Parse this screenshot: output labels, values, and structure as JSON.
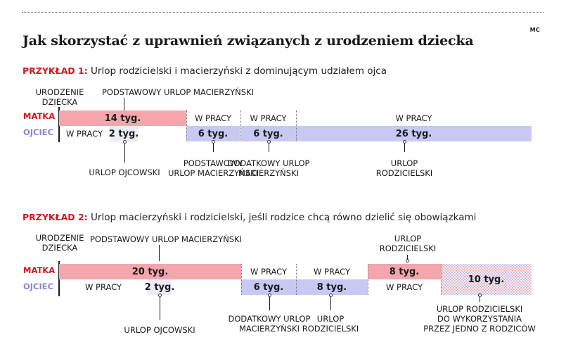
{
  "header": {
    "mc": "MC",
    "title": "Jak skorzystać z uprawnień związanych z urodzeniem dziecka"
  },
  "row_labels": {
    "matka": "MATKA",
    "ojciec": "OJCIEC"
  },
  "example1": {
    "label": "PRZYKŁAD 1:",
    "description": "Urlop rodzicielski i macierzyński z dominującym udziałem ojca",
    "birth_label": [
      "URODZENIE",
      "DZIECKA"
    ],
    "top_annotation": "PODSTAWOWY URLOP MACIERZYŃSKI",
    "matka": [
      {
        "text": "14 tyg.",
        "type": "leave"
      },
      {
        "text": "W PRACY",
        "type": "work"
      },
      {
        "text": "W PRACY",
        "type": "work"
      },
      {
        "text": "W PRACY",
        "type": "work"
      }
    ],
    "ojciec": [
      {
        "text": "W PRACY",
        "type": "work"
      },
      {
        "text": "2 tyg.",
        "type": "leave"
      },
      {
        "text": "6 tyg.",
        "type": "leave"
      },
      {
        "text": "6 tyg.",
        "type": "leave"
      },
      {
        "text": "26 tyg.",
        "type": "leave"
      }
    ],
    "annotations": [
      {
        "lines": [
          "URLOP OJCOWSKI"
        ]
      },
      {
        "lines": [
          "PODSTAWOWY",
          "URLOP MACIERZYŃSKI"
        ]
      },
      {
        "lines": [
          "DODATKOWY URLOP",
          "MACIERZYŃSKI"
        ]
      },
      {
        "lines": [
          "URLOP",
          "RODZICIELSKI"
        ]
      }
    ]
  },
  "example2": {
    "label": "PRZYKŁAD 2:",
    "description": "Urlop macierzyński i rodzicielski, jeśli rodzice chcą równo dzielić się obowiązkami",
    "birth_label": [
      "URODZENIE",
      "DZIECKA"
    ],
    "top_annotation": "PODSTAWOWY URLOP MACIERZYŃSKI",
    "top_annotation_right": [
      "URLOP",
      "RODZICIELSKI"
    ],
    "matka": [
      {
        "text": "20 tyg.",
        "type": "leave"
      },
      {
        "text": "W PRACY",
        "type": "work"
      },
      {
        "text": "W PRACY",
        "type": "work"
      },
      {
        "text": "8 tyg.",
        "type": "leave"
      }
    ],
    "ojciec": [
      {
        "text": "W PRACY",
        "type": "work"
      },
      {
        "text": "2 tyg.",
        "type": "leave"
      },
      {
        "text": "6 tyg.",
        "type": "leave"
      },
      {
        "text": "8 tyg.",
        "type": "leave"
      },
      {
        "text": "W PRACY",
        "type": "work"
      }
    ],
    "shared": {
      "text": "10 tyg."
    },
    "annotations": [
      {
        "lines": [
          "URLOP OJCOWSKI"
        ]
      },
      {
        "lines": [
          "DODATKOWY URLOP",
          "MACIERZYŃSKI"
        ]
      },
      {
        "lines": [
          "URLOP",
          "RODZICIELSKI"
        ]
      },
      {
        "lines": [
          "URLOP RODZICIELSKI",
          "DO WYKORZYSTANIA",
          "PRZEZ JEDNO Z RODZICÓW"
        ]
      }
    ]
  },
  "colors": {
    "matka_leave": "#f3a7ad",
    "ojciec_leave": "#c8c8f3",
    "label_red": "#d2161e",
    "label_lavender": "#8a85d6"
  }
}
